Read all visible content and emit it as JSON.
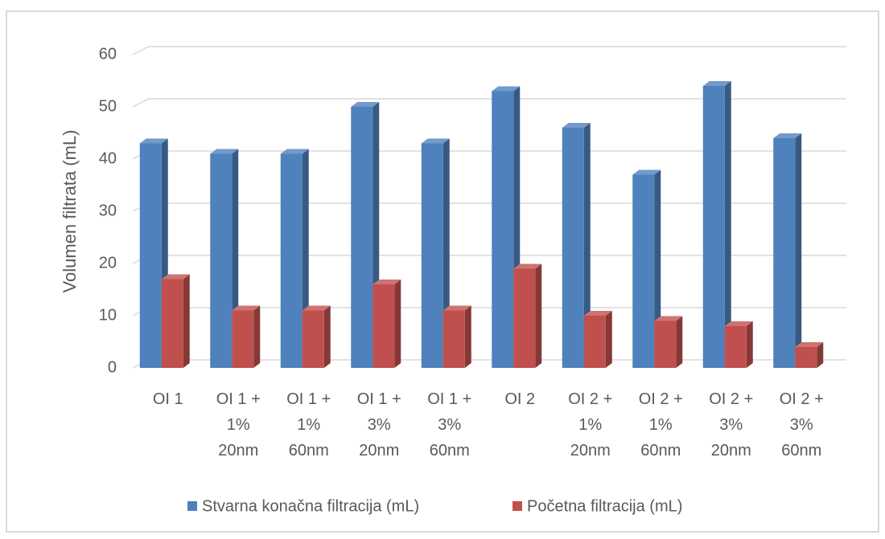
{
  "chart_data": {
    "type": "bar3d",
    "ylabel": "Volumen filtrata (mL)",
    "categories": [
      "OI 1",
      "OI 1 + 1% 20nm",
      "OI 1 + 1% 60nm",
      "OI 1 + 3% 20nm",
      "OI 1 + 3% 60nm",
      "OI 2",
      "OI 2 + 1% 20nm",
      "OI 2 + 1% 60nm",
      "OI 2 + 3% 20nm",
      "OI 2 + 3% 60nm"
    ],
    "series": [
      {
        "name": "Stvarna konačna filtracija (mL)",
        "color": "#4f81bd",
        "values": [
          43,
          41,
          41,
          50,
          43,
          53,
          46,
          37,
          54,
          44
        ]
      },
      {
        "name": "Početna filtracija (mL)",
        "color": "#c0504d",
        "values": [
          17,
          11,
          11,
          16,
          11,
          19,
          10,
          9,
          8,
          4
        ]
      }
    ],
    "ylim": [
      0,
      60
    ],
    "yticks": [
      0,
      10,
      20,
      30,
      40,
      50,
      60
    ],
    "grid": true,
    "legend": "bottom"
  }
}
